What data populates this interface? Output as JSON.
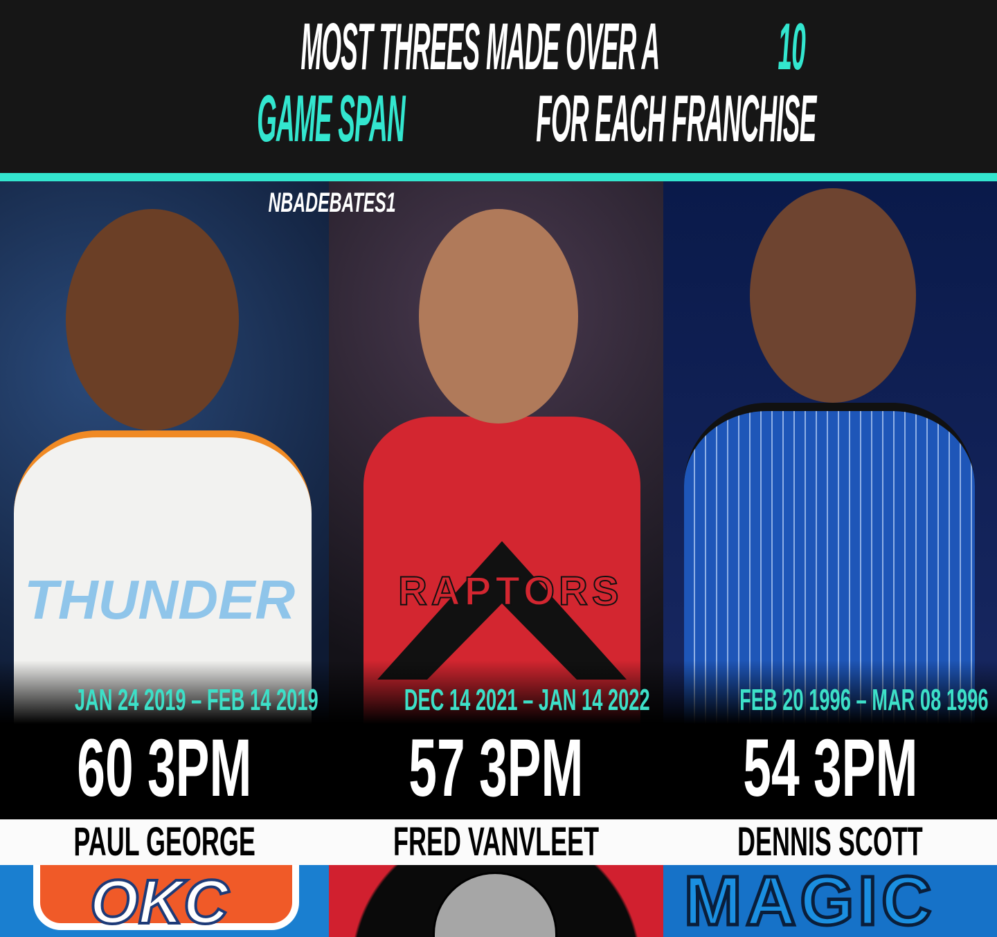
{
  "header": {
    "line1_white": "MOST THREES MADE OVER A ",
    "line1_accent": "10",
    "line2_accent": "GAME SPAN",
    "line2_white": " FOR EACH FRANCHISE"
  },
  "watermark": "NBADEBATES1",
  "colors": {
    "accent": "#33e6cf",
    "header_bg": "#161616"
  },
  "players": [
    {
      "name": "PAUL GEORGE",
      "team": "Thunder",
      "dates": "JAN 24 2019 – FEB 14 2019",
      "threes": "60 3PM",
      "logo": "okc-thunder-logo"
    },
    {
      "name": "FRED VANVLEET",
      "team": "Raptors",
      "dates": "DEC 14 2021 – JAN 14 2022",
      "threes": "57 3PM",
      "logo": "toronto-raptors-logo"
    },
    {
      "name": "DENNIS SCOTT",
      "team": "Magic",
      "dates": "FEB 20 1996 – MAR 08 1996",
      "threes": "54 3PM",
      "logo": "orlando-magic-logo"
    }
  ]
}
